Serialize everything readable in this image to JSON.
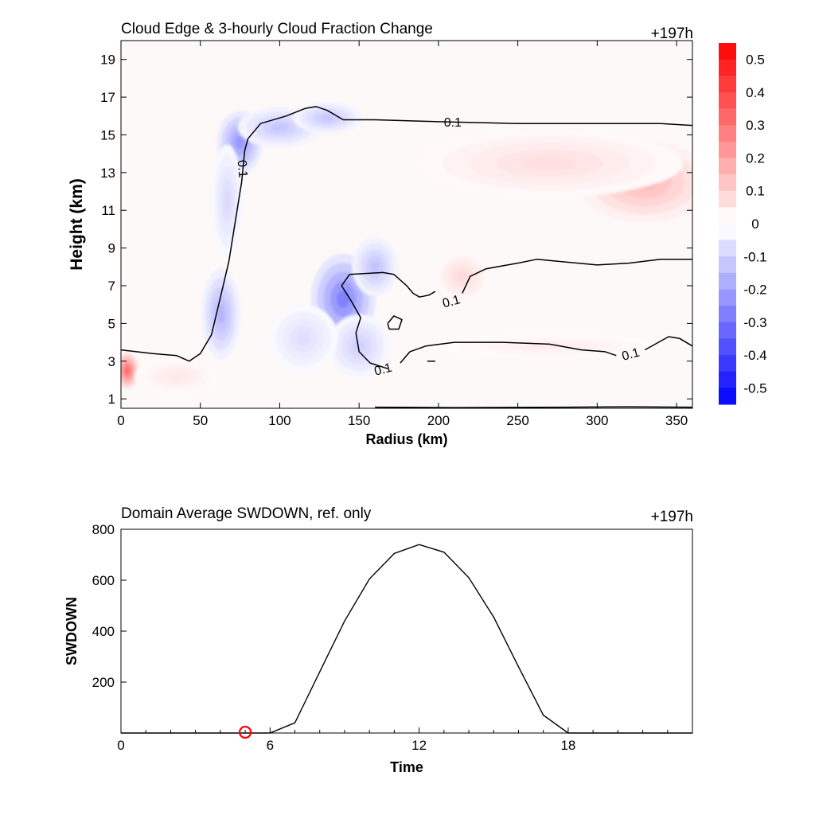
{
  "chart_data": [
    {
      "type": "heatmap",
      "title": "Cloud Edge & 3-hourly Cloud Fraction Change",
      "time_label": "+197h",
      "xlabel": "Radius (km)",
      "ylabel": "Height (km)",
      "xlim": [
        0,
        360
      ],
      "ylim": [
        0.5,
        20
      ],
      "xticks": [
        0,
        50,
        100,
        150,
        200,
        250,
        300,
        350
      ],
      "yticks": [
        1,
        3,
        5,
        7,
        9,
        11,
        13,
        15,
        17,
        19
      ],
      "grid": false,
      "colorbar": {
        "ticks": [
          0.5,
          0.4,
          0.3,
          0.2,
          0.1,
          0,
          -0.1,
          -0.2,
          -0.3,
          -0.4,
          -0.5
        ],
        "tick_labels": [
          "0.5",
          "0.4",
          "0.3",
          "0.2",
          "0.1",
          "0",
          "-0.1",
          "-0.2",
          "-0.3",
          "-0.4",
          "-0.5"
        ],
        "range": [
          -0.55,
          0.55
        ],
        "positive_color": "#ff0000",
        "negative_color": "#0000ff"
      },
      "contour_label": "0.1",
      "anomalies": [
        {
          "r": 75,
          "z": 14.6,
          "sr": 12,
          "sz": 1.4,
          "v": -0.22
        },
        {
          "r": 100,
          "z": 15.4,
          "sr": 22,
          "sz": 0.9,
          "v": -0.12
        },
        {
          "r": 130,
          "z": 15.9,
          "sr": 18,
          "sz": 0.7,
          "v": -0.12
        },
        {
          "r": 67,
          "z": 11.5,
          "sr": 8,
          "sz": 2.5,
          "v": -0.08
        },
        {
          "r": 63,
          "z": 5.5,
          "sr": 10,
          "sz": 2.0,
          "v": -0.16
        },
        {
          "r": 140,
          "z": 6.3,
          "sr": 17,
          "sz": 2.0,
          "v": -0.27
        },
        {
          "r": 160,
          "z": 8.0,
          "sr": 12,
          "sz": 1.3,
          "v": -0.13
        },
        {
          "r": 150,
          "z": 3.8,
          "sr": 16,
          "sz": 1.4,
          "v": -0.1
        },
        {
          "r": 115,
          "z": 4.2,
          "sr": 18,
          "sz": 1.5,
          "v": -0.07
        },
        {
          "r": 4,
          "z": 2.5,
          "sr": 6,
          "sz": 0.8,
          "v": 0.32
        },
        {
          "r": 35,
          "z": 2.2,
          "sr": 22,
          "sz": 0.8,
          "v": 0.05
        },
        {
          "r": 330,
          "z": 12.5,
          "sr": 35,
          "sz": 1.8,
          "v": 0.15
        },
        {
          "r": 270,
          "z": 13.5,
          "sr": 70,
          "sz": 1.5,
          "v": 0.07
        },
        {
          "r": 215,
          "z": 7.5,
          "sr": 14,
          "sz": 1.1,
          "v": 0.08
        },
        {
          "r": 270,
          "z": 3.8,
          "sr": 60,
          "sz": 0.5,
          "v": 0.04
        }
      ],
      "contours": [
        [
          [
            0,
            3.6
          ],
          [
            20,
            3.4
          ],
          [
            35,
            3.3
          ],
          [
            43,
            3.0
          ],
          [
            50,
            3.4
          ],
          [
            57,
            4.4
          ],
          [
            63,
            6.5
          ],
          [
            68,
            8.3
          ],
          [
            72,
            10.4
          ],
          [
            76,
            12.5
          ],
          [
            78,
            14.2
          ],
          [
            80,
            14.8
          ],
          [
            88,
            15.6
          ],
          [
            104,
            16.0
          ],
          [
            116,
            16.4
          ],
          [
            123,
            16.5
          ],
          [
            130,
            16.3
          ],
          [
            140,
            15.8
          ],
          [
            160,
            15.8
          ],
          [
            200,
            15.7
          ],
          [
            250,
            15.6
          ],
          [
            300,
            15.6
          ],
          [
            340,
            15.6
          ],
          [
            360,
            15.5
          ]
        ],
        [
          [
            168,
            2.6
          ],
          [
            157,
            2.9
          ],
          [
            150,
            3.5
          ],
          [
            148,
            4.5
          ],
          [
            151,
            5.3
          ],
          [
            145,
            6.2
          ],
          [
            139,
            7.0
          ],
          [
            144,
            7.6
          ],
          [
            165,
            7.7
          ],
          [
            172,
            7.6
          ],
          [
            180,
            7.0
          ],
          [
            184,
            6.6
          ],
          [
            188,
            6.4
          ],
          [
            194,
            6.5
          ],
          [
            198,
            6.7
          ]
        ],
        [
          [
            215,
            6.6
          ],
          [
            220,
            7.5
          ],
          [
            230,
            7.9
          ],
          [
            250,
            8.2
          ],
          [
            262,
            8.4
          ],
          [
            275,
            8.3
          ],
          [
            300,
            8.1
          ],
          [
            320,
            8.2
          ],
          [
            340,
            8.4
          ],
          [
            360,
            8.4
          ]
        ],
        [
          [
            176,
            2.9
          ],
          [
            182,
            3.5
          ],
          [
            192,
            3.8
          ],
          [
            210,
            4.0
          ],
          [
            240,
            4.0
          ],
          [
            270,
            3.9
          ],
          [
            290,
            3.6
          ],
          [
            305,
            3.5
          ],
          [
            312,
            3.3
          ]
        ],
        [
          [
            330,
            3.6
          ],
          [
            345,
            4.3
          ],
          [
            352,
            4.2
          ],
          [
            360,
            3.8
          ]
        ],
        [
          [
            193,
            3.0
          ],
          [
            198,
            3.0
          ]
        ],
        [
          [
            168,
            5.0
          ],
          [
            172,
            5.4
          ],
          [
            177,
            5.2
          ],
          [
            175,
            4.7
          ],
          [
            169,
            4.7
          ],
          [
            168,
            5.0
          ]
        ],
        [
          [
            160,
            0.56
          ],
          [
            210,
            0.54
          ],
          [
            280,
            0.56
          ],
          [
            320,
            0.58
          ],
          [
            360,
            0.56
          ]
        ]
      ],
      "contour_labels": [
        {
          "r": 77,
          "z": 13.2,
          "rot": 85
        },
        {
          "r": 209,
          "z": 15.7,
          "rot": 0
        },
        {
          "r": 208,
          "z": 6.2,
          "rot": -15
        },
        {
          "r": 165,
          "z": 2.6,
          "rot": -15
        },
        {
          "r": 321,
          "z": 3.4,
          "rot": -15
        }
      ]
    },
    {
      "type": "line",
      "title": "Domain Average SWDOWN, ref. only",
      "time_label": "+197h",
      "xlabel": "Time",
      "ylabel": "SWDOWN",
      "xlim": [
        0,
        23
      ],
      "ylim": [
        0,
        800
      ],
      "xticks": [
        0,
        6,
        12,
        18
      ],
      "yticks": [
        200,
        400,
        600,
        800
      ],
      "grid": false,
      "x": [
        0,
        1,
        2,
        3,
        4,
        5,
        6,
        7,
        8,
        9,
        10,
        11,
        12,
        13,
        14,
        15,
        16,
        17,
        18,
        19,
        20,
        21,
        22,
        23
      ],
      "values": [
        0,
        0,
        0,
        0,
        0,
        0,
        0,
        40,
        240,
        440,
        605,
        705,
        740,
        710,
        610,
        455,
        260,
        70,
        0,
        0,
        0,
        0,
        0,
        0
      ],
      "marker": {
        "x": 5,
        "y": 0,
        "color": "#ff0000"
      }
    }
  ]
}
